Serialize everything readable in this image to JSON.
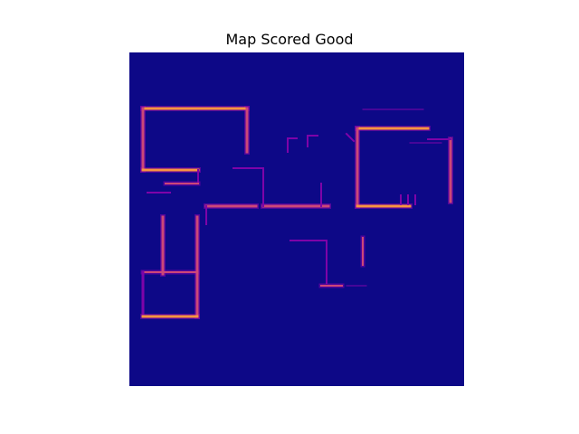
{
  "figure": {
    "title": "Map Scored Good"
  },
  "map": {
    "colormap": "plasma",
    "background_color": "#0d0887",
    "low_score_color": "#7e03a8",
    "mid_score_color": "#cc4778",
    "high_score_color": "#f89540",
    "axes_visible": false
  }
}
